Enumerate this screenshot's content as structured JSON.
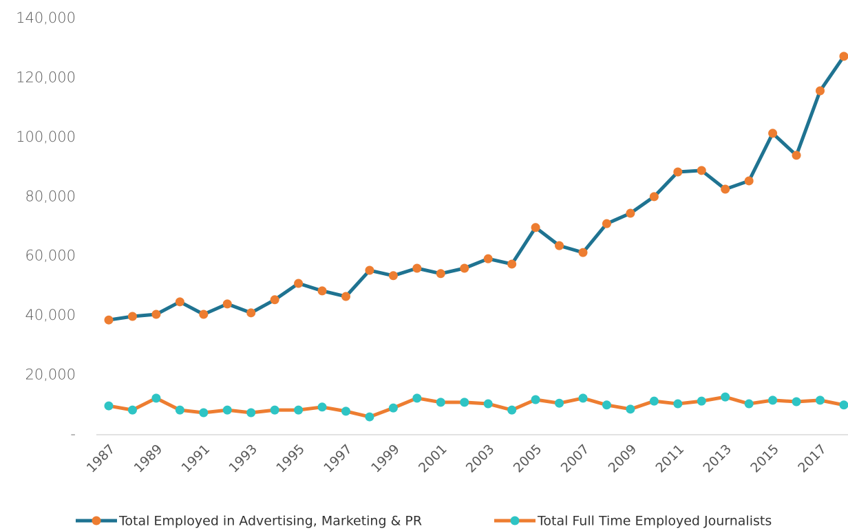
{
  "chart_data": {
    "type": "line",
    "categories": [
      "1987",
      null,
      "1989",
      null,
      "1991",
      null,
      "1993",
      null,
      "1995",
      null,
      "1997",
      null,
      "1999",
      null,
      "2001",
      null,
      "2003",
      null,
      "2005",
      null,
      "2007",
      null,
      "2009",
      null,
      "2011",
      null,
      "2013",
      null,
      "2015",
      null,
      "2017",
      null
    ],
    "series": [
      {
        "name": "Total Employed in Advertising, Marketing & PR",
        "color": "#1f7391",
        "marker_color": "#ed7d31",
        "values": [
          38600,
          39800,
          40500,
          44700,
          40500,
          44000,
          41000,
          45400,
          50900,
          48400,
          46500,
          55300,
          53500,
          56000,
          54200,
          56000,
          59200,
          57400,
          69700,
          63600,
          61300,
          71000,
          74500,
          80100,
          88400,
          88900,
          82600,
          85400,
          101400,
          94000,
          115700,
          127300
        ]
      },
      {
        "name": "Total Full Time Employed Journalists",
        "color": "#ed7d31",
        "marker_color": "#2ec4c4",
        "values": [
          9700,
          8300,
          12300,
          8300,
          7400,
          8300,
          7400,
          8300,
          8300,
          9300,
          7900,
          6000,
          9000,
          12300,
          10900,
          10900,
          10400,
          8300,
          11800,
          10600,
          12300,
          10000,
          8600,
          11300,
          10400,
          11300,
          12700,
          10400,
          11600,
          11100,
          11600,
          10000
        ]
      }
    ],
    "ylim": [
      0,
      140000
    ],
    "yticks": [
      {
        "value": 0,
        "label": "-"
      },
      {
        "value": 20000,
        "label": "20,000"
      },
      {
        "value": 40000,
        "label": "40,000"
      },
      {
        "value": 60000,
        "label": "60,000"
      },
      {
        "value": 80000,
        "label": "80,000"
      },
      {
        "value": 100000,
        "label": "100,000"
      },
      {
        "value": 120000,
        "label": "120,000"
      },
      {
        "value": 140000,
        "label": "140,000"
      }
    ],
    "grid": false,
    "legend": "bottom"
  }
}
